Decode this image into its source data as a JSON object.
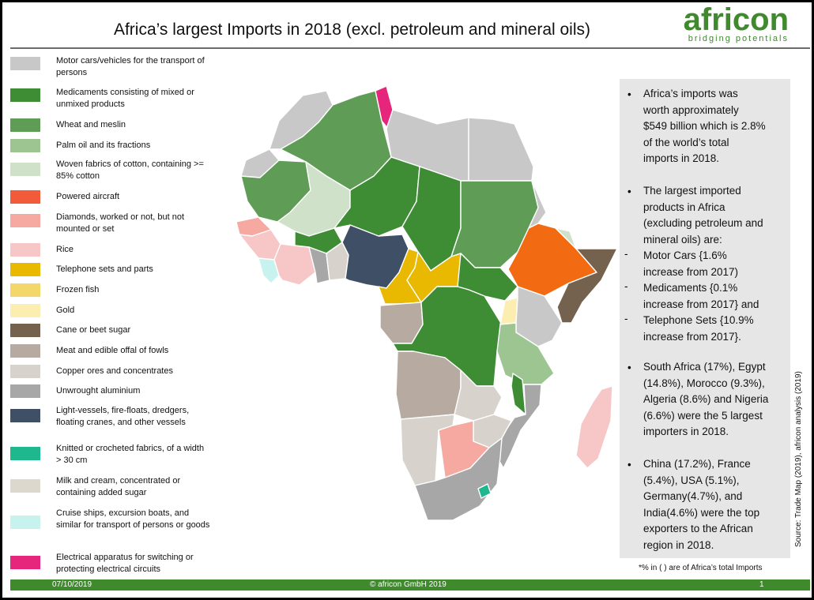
{
  "title": "Africa’s largest Imports in 2018 (excl. petroleum and mineral oils)",
  "logo": {
    "name": "africon",
    "tagline": "bridging potentials"
  },
  "legend": [
    {
      "label": "Motor cars/vehicles for the transport of persons",
      "color": "#c8c8c8"
    },
    {
      "label": "Medicaments consisting of mixed or unmixed products",
      "color": "#3e8c34"
    },
    {
      "label": "Wheat and meslin",
      "color": "#5f9d56"
    },
    {
      "label": "Palm oil and its fractions",
      "color": "#9cc592"
    },
    {
      "label": "Woven fabrics of cotton, containing >= 85% cotton",
      "color": "#cfe2c9"
    },
    {
      "label": "Powered aircraft",
      "color": "#f35a3a"
    },
    {
      "label": "Diamonds, worked or not, but not mounted or set",
      "color": "#f5a9a0"
    },
    {
      "label": "Rice",
      "color": "#f6c7c6"
    },
    {
      "label": "Telephone sets and parts",
      "color": "#e9b800"
    },
    {
      "label": "Frozen fish",
      "color": "#f4d76a"
    },
    {
      "label": "Gold",
      "color": "#fbeeb0"
    },
    {
      "label": "Cane or beet sugar",
      "color": "#74624f"
    },
    {
      "label": "Meat and edible offal of fowls",
      "color": "#b7aba1"
    },
    {
      "label": "Copper ores and concentrates",
      "color": "#d7d2cc"
    },
    {
      "label": "Unwrought aluminium",
      "color": "#a7a7a7"
    },
    {
      "label": "Light-vessels, fire-floats, dredgers, floating cranes, and other vessels",
      "color": "#3f4f66"
    },
    {
      "label": "Knitted or crocheted fabrics, of a width > 30 cm",
      "color": "#1fb88e"
    },
    {
      "label": "Milk and cream, concentrated or containing added sugar",
      "color": "#dcd8cd"
    },
    {
      "label": "Cruise ships, excursion boats, and similar for transport of persons or goods",
      "color": "#c8f2ee"
    },
    {
      "label": "Electrical apparatus for switching or protecting electrical circuits",
      "color": "#e6267c"
    }
  ],
  "info": {
    "p1": [
      "Africa’s imports was",
      "worth approximately",
      "$549 billion which is 2.8%",
      "of the world’s total",
      "imports in 2018."
    ],
    "p2": [
      "The largest imported",
      "products in Africa",
      "(excluding petroleum and",
      "mineral oils) are:"
    ],
    "d1": [
      "Motor Cars {1.6%",
      "increase from 2017)"
    ],
    "d2": [
      "Medicaments {0.1%",
      "increase from 2017} and"
    ],
    "d3": [
      "Telephone Sets {10.9%",
      "increase from 2017}."
    ],
    "p3": [
      "South Africa (17%), Egypt",
      "(14.8%), Morocco (9.3%),",
      "Algeria (8.6%) and Nigeria",
      "(6.6%) were the 5 largest",
      "importers in 2018."
    ],
    "p4": [
      "China (17.2%), France",
      "(5.4%), USA (5.1%),",
      "Germany(4.7%), and",
      "India(4.6%) were the top",
      "exporters to the African",
      "region in 2018."
    ],
    "bullet": "•",
    "dash": "-"
  },
  "note": "*% in ( ) are of Africa’s total Imports",
  "source": "Source: Trade Map (2019), africon analysis (2019)",
  "footer": {
    "date": "07/10/2019",
    "copyright": "© africon GmbH 2019",
    "page": "1"
  },
  "map_colors": {
    "motor": "#c8c8c8",
    "medic": "#3e8c34",
    "wheat": "#5f9d56",
    "palm": "#9cc592",
    "cotton": "#cfe2c9",
    "aircraft": "#f35a3a",
    "diamond": "#f5a9a0",
    "rice": "#f6c7c6",
    "phone": "#e9b800",
    "gold": "#fbeeb0",
    "sugar": "#74624f",
    "fowl": "#b7aba1",
    "copper": "#d7d2cc",
    "alu": "#a7a7a7",
    "vessel": "#3f4f66",
    "knit": "#1fb88e",
    "milk": "#dcd8cd",
    "cruise": "#c8f2ee",
    "elec": "#e6267c",
    "ethiopia": "#f26a12"
  }
}
